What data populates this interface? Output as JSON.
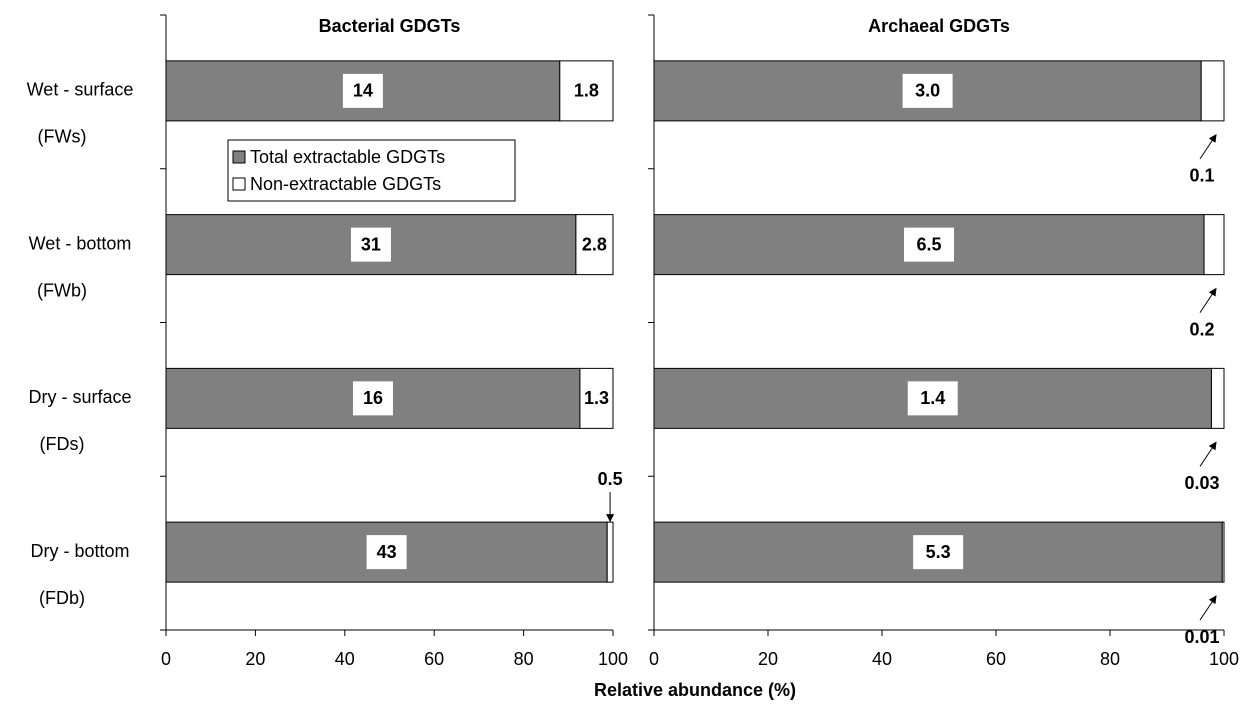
{
  "chart_data": [
    {
      "type": "bar",
      "orientation": "horizontal",
      "stacked": true,
      "title": "Bacterial GDGTs",
      "categories": [
        "Wet - surface",
        "Wet - bottom",
        "Dry - surface",
        "Dry - bottom"
      ],
      "category_codes": [
        "(FWs)",
        "(FWb)",
        "(FDs)",
        "(FDb)"
      ],
      "series": [
        {
          "name": "Total extractable GDGTs",
          "color": "#808080",
          "values": [
            88.1,
            91.7,
            92.6,
            98.7
          ],
          "amount_labels": [
            "14",
            "31",
            "16",
            "43"
          ]
        },
        {
          "name": "Non-extractable GDGTs",
          "color": "#ffffff",
          "values": [
            11.9,
            8.3,
            7.4,
            1.3
          ],
          "amount_labels": [
            "1.8",
            "2.8",
            "1.3",
            "0.5"
          ]
        }
      ],
      "small_label_position": "above",
      "xlim": [
        0,
        100
      ],
      "xticks": [
        0,
        20,
        40,
        60,
        80,
        100
      ],
      "xlabel": "Relative abundance (%)",
      "legend": "upper-left"
    },
    {
      "type": "bar",
      "orientation": "horizontal",
      "stacked": true,
      "title": "Archaeal GDGTs",
      "series": [
        {
          "color": "#808080",
          "values": [
            96.0,
            96.5,
            97.8,
            99.7
          ],
          "amount_labels": [
            "3.0",
            "6.5",
            "1.4",
            "5.3"
          ]
        },
        {
          "color": "#ffffff",
          "values": [
            4.0,
            3.5,
            2.2,
            0.3
          ],
          "amount_labels": [
            "0.1",
            "0.2",
            "0.03",
            "0.01"
          ]
        }
      ],
      "small_label_position": "below",
      "xlim": [
        0,
        100
      ],
      "xticks": [
        0,
        20,
        40,
        60,
        80,
        100
      ]
    }
  ]
}
